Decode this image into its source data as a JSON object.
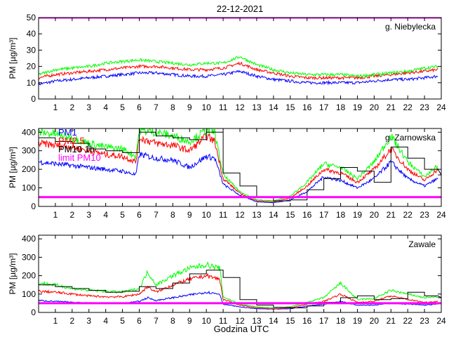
{
  "figure": {
    "title": "22-12-2021",
    "xlabel": "Godzina UTC"
  },
  "colors": {
    "pm1": "#0000ff",
    "pm25": "#ff0000",
    "pm10": "#00ff00",
    "pm10_1h": "#000000",
    "limit": "#ff00ff"
  },
  "chart_data": [
    {
      "type": "line",
      "title": "g. Niebylecka",
      "ylabel": "PM [µg/m³]",
      "ylim": [
        0,
        50
      ],
      "yticks": [
        0,
        10,
        20,
        30,
        40,
        50
      ],
      "xlim": [
        0,
        24
      ],
      "xticks": [
        1,
        2,
        3,
        4,
        5,
        6,
        7,
        8,
        9,
        10,
        11,
        12,
        13,
        14,
        15,
        16,
        17,
        18,
        19,
        20,
        21,
        22,
        23,
        24
      ],
      "limit_value": 50,
      "x": [
        0,
        1,
        2,
        3,
        4,
        5,
        6,
        7,
        8,
        9,
        10,
        11,
        12,
        13,
        14,
        15,
        16,
        17,
        18,
        19,
        20,
        21,
        22,
        23,
        23.8
      ],
      "series": [
        {
          "key": "pm1",
          "values": [
            9,
            11,
            12,
            13,
            14,
            15,
            16,
            16,
            15,
            14,
            14,
            15,
            17,
            14,
            12,
            11,
            10,
            10,
            10,
            10,
            11,
            12,
            12,
            13,
            14
          ]
        },
        {
          "key": "pm25",
          "values": [
            13,
            15,
            16,
            17,
            18,
            19,
            20,
            20,
            19,
            18,
            18,
            19,
            22,
            18,
            16,
            14,
            13,
            13,
            13,
            13,
            14,
            15,
            16,
            17,
            18
          ]
        },
        {
          "key": "pm10",
          "values": [
            15,
            18,
            19,
            20,
            22,
            23,
            24,
            23,
            22,
            21,
            22,
            22,
            26,
            21,
            18,
            16,
            15,
            15,
            15,
            14,
            15,
            16,
            17,
            19,
            20
          ]
        }
      ]
    },
    {
      "type": "line",
      "title": "g. Zarnowska",
      "ylabel": "PM [µg/m³]",
      "ylim": [
        0,
        420
      ],
      "yticks": [
        0,
        100,
        200,
        300,
        400
      ],
      "xlim": [
        0,
        24
      ],
      "xticks": [
        1,
        2,
        3,
        4,
        5,
        6,
        7,
        8,
        9,
        10,
        11,
        12,
        13,
        14,
        15,
        16,
        17,
        18,
        19,
        20,
        21,
        22,
        23,
        24
      ],
      "limit_value": 50,
      "legend": [
        "PM1",
        "PM2.5",
        "PM10 1h",
        "limit PM10"
      ],
      "x": [
        0,
        1,
        2,
        3,
        4,
        5,
        5.8,
        6,
        7,
        8,
        9,
        10,
        10.5,
        11,
        12,
        13,
        14,
        15,
        16,
        17,
        18,
        19,
        20,
        21,
        22,
        23,
        23.8
      ],
      "series": [
        {
          "key": "pm1",
          "values": [
            240,
            230,
            220,
            210,
            200,
            190,
            170,
            280,
            260,
            250,
            210,
            270,
            260,
            120,
            60,
            25,
            20,
            35,
            80,
            160,
            140,
            100,
            150,
            240,
            150,
            110,
            150
          ]
        },
        {
          "key": "pm25",
          "values": [
            340,
            330,
            320,
            300,
            280,
            270,
            240,
            370,
            340,
            330,
            300,
            380,
            350,
            150,
            70,
            30,
            25,
            45,
            110,
            200,
            180,
            130,
            200,
            310,
            200,
            140,
            200
          ]
        },
        {
          "key": "pm10",
          "values": [
            400,
            390,
            370,
            340,
            320,
            310,
            270,
            410,
            400,
            380,
            350,
            410,
            400,
            170,
            80,
            35,
            30,
            55,
            130,
            230,
            210,
            150,
            240,
            380,
            240,
            160,
            220
          ]
        }
      ],
      "hourly": {
        "key": "pm10_1h",
        "values": [
          370,
          350,
          340,
          310,
          300,
          290,
          400,
          380,
          370,
          360,
          400,
          180,
          110,
          50,
          30,
          35,
          90,
          150,
          210,
          190,
          130,
          320,
          260,
          200,
          170
        ]
      }
    },
    {
      "type": "line",
      "title": "Zawale",
      "ylabel": "PM [µg/m³]",
      "ylim": [
        0,
        420
      ],
      "yticks": [
        0,
        100,
        200,
        300,
        400
      ],
      "xlim": [
        0,
        24
      ],
      "xticks": [
        1,
        2,
        3,
        4,
        5,
        6,
        7,
        8,
        9,
        10,
        11,
        12,
        13,
        14,
        15,
        16,
        17,
        18,
        19,
        20,
        21,
        22,
        23,
        24
      ],
      "limit_value": 50,
      "x": [
        0,
        1,
        2,
        3,
        4,
        5,
        6,
        6.5,
        7,
        8,
        9,
        10,
        10.8,
        11,
        12,
        13,
        14,
        15,
        16,
        17,
        18,
        19,
        20,
        21,
        22,
        23,
        23.8
      ],
      "series": [
        {
          "key": "pm1",
          "values": [
            65,
            60,
            55,
            52,
            50,
            50,
            60,
            80,
            65,
            80,
            95,
            110,
            100,
            45,
            30,
            20,
            18,
            20,
            35,
            45,
            60,
            40,
            40,
            50,
            45,
            40,
            45
          ]
        },
        {
          "key": "pm25",
          "values": [
            115,
            110,
            100,
            90,
            85,
            85,
            100,
            140,
            110,
            150,
            180,
            200,
            180,
            70,
            40,
            25,
            20,
            25,
            45,
            60,
            100,
            55,
            60,
            90,
            70,
            55,
            60
          ]
        },
        {
          "key": "pm10",
          "values": [
            160,
            150,
            130,
            120,
            115,
            110,
            130,
            220,
            150,
            200,
            240,
            260,
            240,
            85,
            45,
            30,
            25,
            30,
            55,
            80,
            160,
            70,
            75,
            120,
            100,
            80,
            85
          ]
        }
      ],
      "hourly": {
        "key": "pm10_1h",
        "values": [
          150,
          140,
          130,
          120,
          110,
          115,
          140,
          130,
          160,
          210,
          230,
          190,
          70,
          40,
          28,
          25,
          35,
          55,
          80,
          90,
          70,
          75,
          110,
          90,
          80
        ]
      }
    }
  ]
}
